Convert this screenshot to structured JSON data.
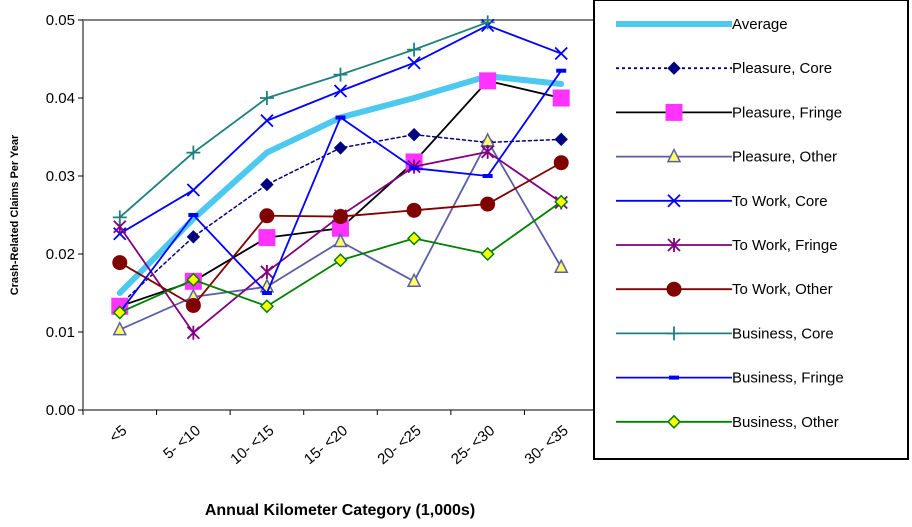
{
  "chart_data": {
    "type": "line",
    "title": "",
    "xlabel": "Annual Kilometer Category (1,000s)",
    "ylabel": "Crash-Related Claims Per Year",
    "categories": [
      "<5",
      "5- <10",
      "10- <15",
      "15- <20",
      "20- <25",
      "25- <30",
      "30- <35"
    ],
    "ylim": [
      0,
      0.05
    ],
    "yticks": [
      "0.00",
      "0.01",
      "0.02",
      "0.03",
      "0.04",
      "0.05"
    ],
    "grid": false,
    "legend_position": "right",
    "series": [
      {
        "name": "Average",
        "color": "#4dc8ee",
        "marker": "none",
        "dash": "solid",
        "values": [
          0.015,
          0.0245,
          0.033,
          0.0375,
          0.04,
          0.0428,
          0.0418
        ]
      },
      {
        "name": "Pleasure, Core",
        "color": "#000080",
        "marker": "diamond",
        "dash": "dashed",
        "values": [
          0.0135,
          0.0222,
          0.0289,
          0.0336,
          0.0353,
          0.0343,
          0.0347
        ]
      },
      {
        "name": "Pleasure, Fringe",
        "color": "#000000",
        "marker": "square",
        "dash": "solid",
        "values": [
          0.0133,
          0.0165,
          0.0221,
          0.0233,
          0.0318,
          0.0422,
          0.04
        ]
      },
      {
        "name": "Pleasure, Other",
        "color": "#5b5ea6",
        "marker": "triangle",
        "dash": "solid",
        "values": [
          0.0103,
          0.0145,
          0.0158,
          0.0216,
          0.0165,
          0.0345,
          0.0183
        ]
      },
      {
        "name": "To Work, Core",
        "color": "#0000ff",
        "marker": "x",
        "dash": "solid",
        "values": [
          0.0226,
          0.0282,
          0.0371,
          0.0409,
          0.0445,
          0.0493,
          0.0457
        ]
      },
      {
        "name": "To Work, Fringe",
        "color": "#800080",
        "marker": "star",
        "dash": "solid",
        "values": [
          0.0235,
          0.0099,
          0.0177,
          0.0249,
          0.0312,
          0.0331,
          0.0266
        ]
      },
      {
        "name": "To Work, Other",
        "color": "#800000",
        "marker": "circle",
        "dash": "solid",
        "values": [
          0.0189,
          0.0134,
          0.0249,
          0.0248,
          0.0256,
          0.0264,
          0.0317
        ]
      },
      {
        "name": "Business, Core",
        "color": "#1f8080",
        "marker": "plus",
        "dash": "solid",
        "values": [
          0.0247,
          0.033,
          0.04,
          0.043,
          0.0462,
          0.0497,
          null
        ]
      },
      {
        "name": "Business, Fringe",
        "color": "#0000ff",
        "marker": "dash",
        "dash": "solid",
        "values": [
          0.0125,
          0.025,
          0.015,
          0.0375,
          0.031,
          0.03,
          0.0435
        ]
      },
      {
        "name": "Business, Other",
        "color": "#008000",
        "marker": "diamond-yellow",
        "dash": "solid",
        "values": [
          0.0125,
          0.0167,
          0.0133,
          0.0192,
          0.022,
          0.02,
          0.0267
        ]
      }
    ]
  }
}
